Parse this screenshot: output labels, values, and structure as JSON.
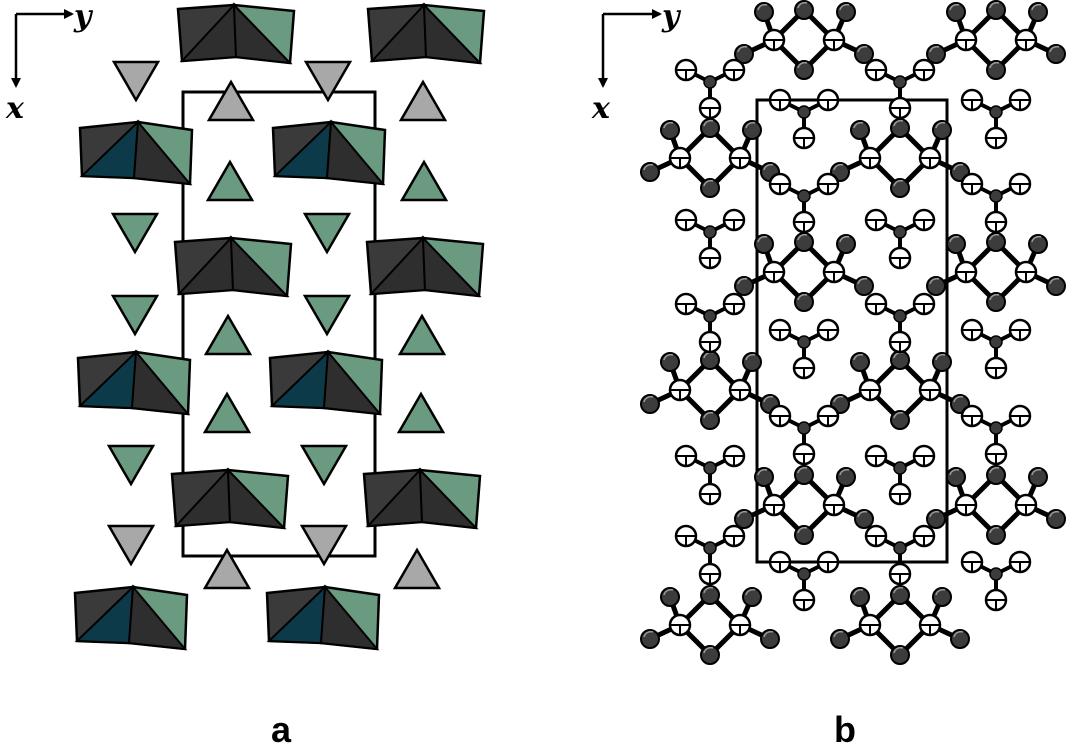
{
  "panels": [
    {
      "id": "a",
      "label": "a",
      "axis_right": "y",
      "axis_down": "x"
    },
    {
      "id": "b",
      "label": "b",
      "axis_right": "y",
      "axis_down": "x"
    }
  ],
  "colors": {
    "polyhedron_dark": "#3a3a3a",
    "polyhedron_mid": "#2e2e2e",
    "polyhedron_green": "#6a9a80",
    "polyhedron_teal": "#0c3a48",
    "triangle_green": "#6a9a80",
    "triangle_gray": "#a8a8a8",
    "atom_dark": "#3c3c3c",
    "atom_white": "#ffffff",
    "outline": "#000000"
  }
}
